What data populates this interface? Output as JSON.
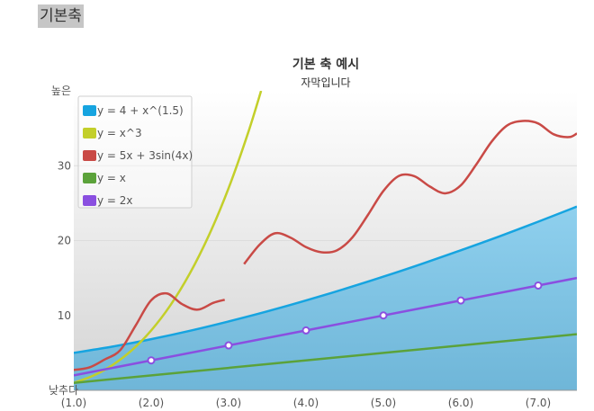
{
  "page": {
    "heading": "기본축"
  },
  "chart_data": {
    "type": "line",
    "title": "기본 축 예시",
    "subtitle": "자막입니다",
    "xlim": [
      1,
      7.5
    ],
    "ylim": [
      0,
      40
    ],
    "x_tick_labels": [
      {
        "x": 1,
        "label": "(1.0)"
      },
      {
        "x": 2,
        "label": "(2.0)"
      },
      {
        "x": 3,
        "label": "(3.0)"
      },
      {
        "x": 4,
        "label": "(4.0)"
      },
      {
        "x": 5,
        "label": "(5.0)"
      },
      {
        "x": 6,
        "label": "(6.0)"
      },
      {
        "x": 7,
        "label": "(7.0)"
      }
    ],
    "y_tick_labels": [
      {
        "y": 0,
        "label": "낮추다"
      },
      {
        "y": 10,
        "label": "10"
      },
      {
        "y": 20,
        "label": "20"
      },
      {
        "y": 30,
        "label": "30"
      },
      {
        "y": 40,
        "label": "높은"
      }
    ],
    "grid": true,
    "legend_position": "top-left",
    "series": [
      {
        "name": "y = 4 + x^(1.5)",
        "kind": "area",
        "color": "#16a4e0",
        "fill": "#7fc6e6",
        "points": [
          [
            1,
            5.0
          ],
          [
            1.5,
            5.84
          ],
          [
            2,
            6.83
          ],
          [
            2.5,
            7.95
          ],
          [
            3,
            9.2
          ],
          [
            3.5,
            10.55
          ],
          [
            4,
            12.0
          ],
          [
            4.5,
            13.55
          ],
          [
            5,
            15.18
          ],
          [
            5.5,
            16.9
          ],
          [
            6,
            18.7
          ],
          [
            6.5,
            20.57
          ],
          [
            7,
            22.52
          ],
          [
            7.5,
            24.54
          ]
        ]
      },
      {
        "name": "y = x^3",
        "kind": "line",
        "color": "#c3cf2a",
        "points": [
          [
            1,
            1
          ],
          [
            1.25,
            1.95
          ],
          [
            1.5,
            3.38
          ],
          [
            1.75,
            5.36
          ],
          [
            2,
            8
          ],
          [
            2.25,
            11.39
          ],
          [
            2.5,
            15.63
          ],
          [
            2.75,
            20.8
          ],
          [
            3,
            27
          ],
          [
            3.25,
            34.33
          ],
          [
            3.42,
            40
          ]
        ]
      },
      {
        "name": "y = 5x + 3sin(4x)",
        "kind": "line",
        "color": "#c94a46",
        "segments": true,
        "points_segment_1": [
          [
            0.9,
            2.8
          ],
          [
            1,
            2.73
          ],
          [
            1.2,
            3.05
          ],
          [
            1.4,
            4.12
          ],
          [
            1.6,
            5.37
          ],
          [
            1.8,
            8.67
          ],
          [
            2,
            12.03
          ],
          [
            2.2,
            12.94
          ],
          [
            2.4,
            11.51
          ],
          [
            2.6,
            10.77
          ],
          [
            2.8,
            11.67
          ],
          [
            2.95,
            12.1
          ]
        ],
        "points_segment_2": [
          [
            3.2,
            16.86
          ],
          [
            3.4,
            19.45
          ],
          [
            3.6,
            20.97
          ],
          [
            3.8,
            20.4
          ],
          [
            4,
            19.12
          ],
          [
            4.2,
            18.44
          ],
          [
            4.4,
            18.69
          ],
          [
            4.6,
            20.43
          ],
          [
            4.8,
            23.42
          ],
          [
            5,
            26.63
          ],
          [
            5.2,
            28.64
          ],
          [
            5.4,
            28.6
          ],
          [
            5.6,
            27.22
          ],
          [
            5.8,
            26.31
          ],
          [
            6,
            27.38
          ],
          [
            6.2,
            30.16
          ],
          [
            6.4,
            33.24
          ],
          [
            6.6,
            35.39
          ],
          [
            6.8,
            35.97
          ],
          [
            7,
            35.64
          ],
          [
            7.2,
            34.2
          ],
          [
            7.4,
            33.82
          ],
          [
            7.5,
            34.31
          ]
        ]
      },
      {
        "name": "y = x",
        "kind": "line",
        "color": "#5ba23a",
        "points": [
          [
            1,
            1
          ],
          [
            7.5,
            7.5
          ]
        ]
      },
      {
        "name": "y = 2x",
        "kind": "line-markers",
        "color": "#8a4fe0",
        "points": [
          [
            1,
            2
          ],
          [
            7.5,
            15
          ]
        ],
        "markers": [
          [
            2,
            4
          ],
          [
            3,
            6
          ],
          [
            4,
            8
          ],
          [
            5,
            10
          ],
          [
            6,
            12
          ],
          [
            7,
            14
          ]
        ]
      }
    ]
  }
}
